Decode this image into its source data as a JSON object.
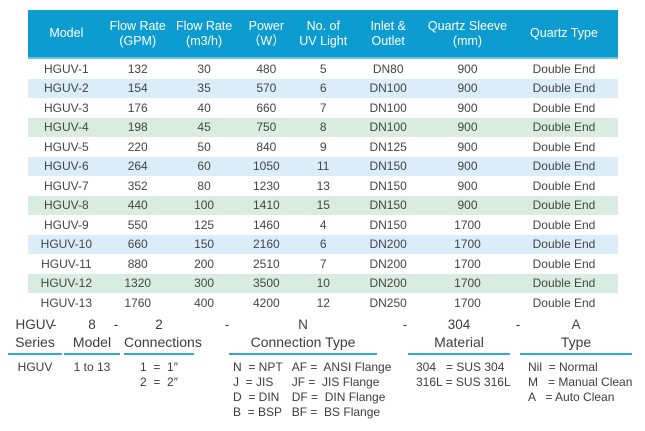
{
  "table": {
    "columns": [
      {
        "line1": "Model",
        "line2": ""
      },
      {
        "line1": "Flow Rate",
        "line2": "(GPM)"
      },
      {
        "line1": "Flow Rate",
        "line2": "(m3/h)"
      },
      {
        "line1": "Power",
        "line2": "（W）"
      },
      {
        "line1": "No. of",
        "line2": "UV Light"
      },
      {
        "line1": "Inlet &",
        "line2": "Outlet"
      },
      {
        "line1": "Quartz Sleeve",
        "line2": "(mm)"
      },
      {
        "line1": "Quartz Type",
        "line2": ""
      }
    ],
    "rows": [
      [
        "HGUV-1",
        "132",
        "30",
        "480",
        "5",
        "DN80",
        "900",
        "Double End"
      ],
      [
        "HGUV-2",
        "154",
        "35",
        "570",
        "6",
        "DN100",
        "900",
        "Double End"
      ],
      [
        "HGUV-3",
        "176",
        "40",
        "660",
        "7",
        "DN100",
        "900",
        "Double End"
      ],
      [
        "HGUV-4",
        "198",
        "45",
        "750",
        "8",
        "DN100",
        "900",
        "Double End"
      ],
      [
        "HGUV-5",
        "220",
        "50",
        "840",
        "9",
        "DN125",
        "900",
        "Double End"
      ],
      [
        "HGUV-6",
        "264",
        "60",
        "1050",
        "11",
        "DN150",
        "900",
        "Double End"
      ],
      [
        "HGUV-7",
        "352",
        "80",
        "1230",
        "13",
        "DN150",
        "900",
        "Double End"
      ],
      [
        "HGUV-8",
        "440",
        "100",
        "1410",
        "15",
        "DN150",
        "900",
        "Double End"
      ],
      [
        "HGUV-9",
        "550",
        "125",
        "1460",
        "4",
        "DN150",
        "1700",
        "Double End"
      ],
      [
        "HGUV-10",
        "660",
        "150",
        "2160",
        "6",
        "DN200",
        "1700",
        "Double End"
      ],
      [
        "HGUV-11",
        "880",
        "200",
        "2510",
        "7",
        "DN200",
        "1700",
        "Double End"
      ],
      [
        "HGUV-12",
        "1320",
        "300",
        "3500",
        "10",
        "DN200",
        "1700",
        "Double End"
      ],
      [
        "HGUV-13",
        "1760",
        "400",
        "4200",
        "12",
        "DN250",
        "1700",
        "Double End"
      ]
    ]
  },
  "legend": {
    "separator": "-",
    "series": {
      "code": "HGUV",
      "label": "Series",
      "value": "HGUV"
    },
    "model": {
      "code": "8",
      "label": "Model",
      "value": "1 to 13"
    },
    "connections": {
      "code": "2",
      "label": "Connections",
      "values": [
        "1  =  1″",
        "2  =  2″"
      ]
    },
    "connection_type": {
      "code": "N",
      "label": "Connection Type",
      "left": [
        "N  = NPT",
        "J  = JIS",
        "D  = DIN",
        "B  = BSP"
      ],
      "right": [
        "AF =  ANSI Flange",
        "JF =  JIS Flange",
        "DF =  DIN Flange",
        "BF =  BS Flange"
      ]
    },
    "material": {
      "code": "304",
      "label": "Material",
      "values": [
        "304   = SUS 304",
        "316L = SUS 316L"
      ]
    },
    "type": {
      "code": "A",
      "label": "Type",
      "values": [
        "Nil  = Normal",
        "M   = Manual Clean",
        "A   = Auto Clean"
      ]
    }
  },
  "colors": {
    "header_bg": "#0C9CD0",
    "header_border": "#67C8DA",
    "row_blue": "#DBEDF8",
    "row_green": "#D9ECE3",
    "underline": "#2FA9D2",
    "divider_green": "#9AD3C0",
    "header_text": "#FFFFFF",
    "body_text": "#454545"
  }
}
